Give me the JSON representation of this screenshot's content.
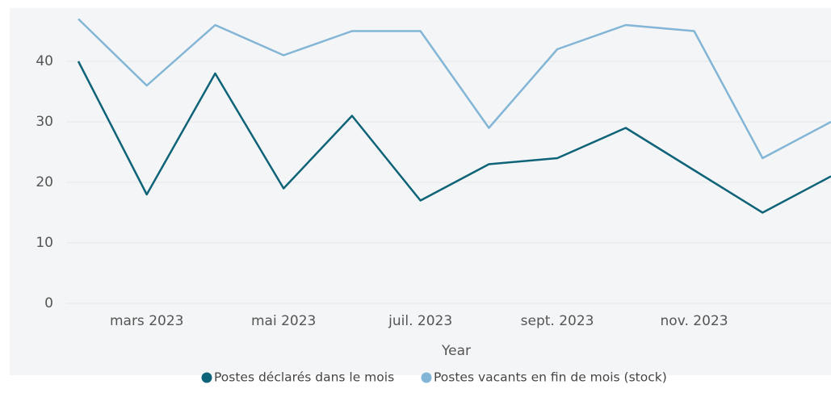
{
  "chart_data": {
    "type": "line",
    "categories": [
      null,
      "mars 2023",
      null,
      "mai 2023",
      null,
      "juil. 2023",
      null,
      "sept. 2023",
      null,
      "nov. 2023",
      null,
      null
    ],
    "xlabel": "Year",
    "series": [
      {
        "name": "Postes déclarés dans le mois",
        "color": "#0f6378",
        "values": [
          40,
          18,
          38,
          19,
          31,
          17,
          23,
          24,
          29,
          22,
          15,
          21
        ]
      },
      {
        "name": "Postes vacants en fin de mois (stock)",
        "color": "#82b5d6",
        "values": [
          47,
          36,
          46,
          41,
          45,
          45,
          29,
          42,
          46,
          45,
          24,
          30
        ]
      }
    ],
    "ylim": [
      0,
      48.8
    ],
    "yticks": [
      0,
      10,
      20,
      30,
      40
    ],
    "grid": true,
    "legend": "bottom"
  }
}
